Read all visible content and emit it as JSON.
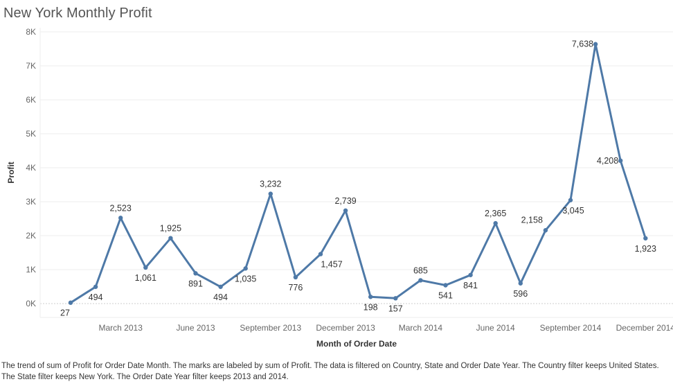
{
  "title": "New York Monthly Profit",
  "caption": "The trend of sum of Profit for Order Date Month.  The marks are labeled by sum of Profit. The data is filtered on Country, State and Order Date Year. The Country filter keeps United States. The State filter keeps New York. The Order Date Year filter keeps 2013 and 2014.",
  "colors": {
    "line": "#4e79a7",
    "grid": "#eeeeee",
    "zero_line": "#cccccc"
  },
  "chart_data": {
    "type": "line",
    "title": "New York Monthly Profit",
    "xlabel": "Month of Order Date",
    "ylabel": "Profit",
    "ylim": [
      0,
      8000
    ],
    "y_ticks": [
      "0K",
      "1K",
      "2K",
      "3K",
      "4K",
      "5K",
      "6K",
      "7K",
      "8K"
    ],
    "x_ticks": [
      "March 2013",
      "June 2013",
      "September 2013",
      "December 2013",
      "March 2014",
      "June 2014",
      "September 2014",
      "December 2014"
    ],
    "x": [
      "January 2013",
      "February 2013",
      "March 2013",
      "April 2013",
      "May 2013",
      "June 2013",
      "July 2013",
      "August 2013",
      "September 2013",
      "October 2013",
      "November 2013",
      "December 2013",
      "January 2014",
      "February 2014",
      "March 2014",
      "April 2014",
      "May 2014",
      "June 2014",
      "July 2014",
      "August 2014",
      "September 2014",
      "October 2014",
      "November 2014",
      "December 2014"
    ],
    "values": [
      27,
      494,
      2523,
      1061,
      1925,
      891,
      494,
      1035,
      3232,
      776,
      1457,
      2739,
      198,
      157,
      685,
      541,
      841,
      2365,
      596,
      2158,
      3045,
      7638,
      4208,
      1923
    ],
    "labels": [
      "27",
      "494",
      "2,523",
      "1,061",
      "1,925",
      "891",
      "494",
      "1,035",
      "3,232",
      "776",
      "1,457",
      "2,739",
      "198",
      "157",
      "685",
      "541",
      "841",
      "2,365",
      "596",
      "2,158",
      "3,045",
      "7,638",
      "4,208",
      "1,923"
    ],
    "grid": true
  }
}
